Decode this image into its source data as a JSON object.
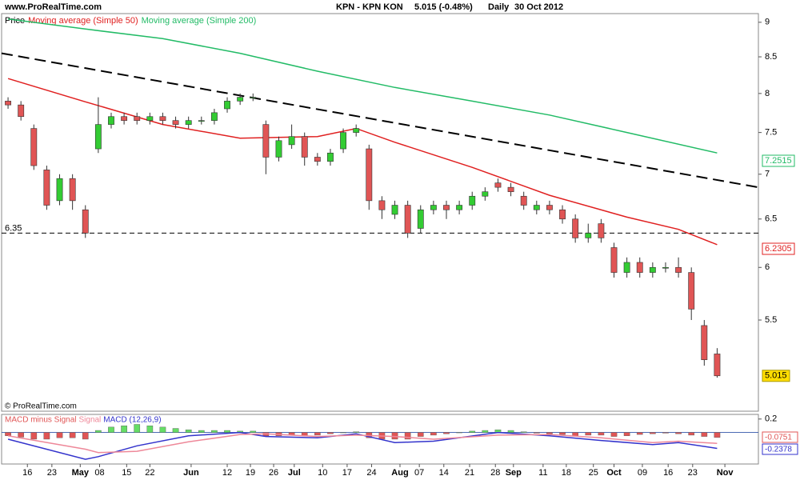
{
  "header": {
    "site": "www.ProRealTime.com",
    "instrument": "KPN - KPN KON",
    "quote": "5.015 (-0.48%)",
    "period": "Daily",
    "date": "30 Oct 2012",
    "copyright": "© ProRealTime.com"
  },
  "chart_data": [
    {
      "type": "candlestick",
      "log_scale": true,
      "legend": [
        "Price",
        "Moving average (Simple 50)",
        "Moving average (Simple 200)"
      ],
      "ylim": [
        4.73,
        9.13
      ],
      "yticks": [
        9,
        8.5,
        8,
        7.5,
        7,
        6.5,
        6,
        5.5
      ],
      "xlim": [
        -0.5,
        58.2
      ],
      "xticks": [
        {
          "value": 1.5,
          "label": "16"
        },
        {
          "value": 3.4,
          "label": "23"
        },
        {
          "value": 5.6,
          "label": "May"
        },
        {
          "value": 7.1,
          "label": "08"
        },
        {
          "value": 9.2,
          "label": "15"
        },
        {
          "value": 11.0,
          "label": "22"
        },
        {
          "value": 14.2,
          "label": "Jun"
        },
        {
          "value": 17.0,
          "label": "12"
        },
        {
          "value": 18.8,
          "label": "19"
        },
        {
          "value": 20.6,
          "label": "26"
        },
        {
          "value": 22.2,
          "label": "Jul"
        },
        {
          "value": 24.4,
          "label": "10"
        },
        {
          "value": 26.3,
          "label": "17"
        },
        {
          "value": 28.2,
          "label": "24"
        },
        {
          "value": 30.4,
          "label": "Aug"
        },
        {
          "value": 31.9,
          "label": "07"
        },
        {
          "value": 33.8,
          "label": "14"
        },
        {
          "value": 35.8,
          "label": "21"
        },
        {
          "value": 37.8,
          "label": "28"
        },
        {
          "value": 39.2,
          "label": "Sep"
        },
        {
          "value": 41.5,
          "label": "11"
        },
        {
          "value": 43.3,
          "label": "18"
        },
        {
          "value": 45.4,
          "label": "25"
        },
        {
          "value": 47.0,
          "label": "Oct"
        },
        {
          "value": 49.2,
          "label": "09"
        },
        {
          "value": 51.2,
          "label": "16"
        },
        {
          "value": 53.1,
          "label": "23"
        },
        {
          "value": 55.6,
          "label": "Nov"
        }
      ],
      "open": [
        7.9,
        7.85,
        7.55,
        7.05,
        6.7,
        6.95,
        6.6,
        7.3,
        7.6,
        7.7,
        7.7,
        7.65,
        7.7,
        7.65,
        7.6,
        7.65,
        7.65,
        7.8,
        7.9,
        7.95,
        7.6,
        7.2,
        7.35,
        7.45,
        7.2,
        7.15,
        7.3,
        7.5,
        7.3,
        6.7,
        6.55,
        6.65,
        6.4,
        6.6,
        6.65,
        6.6,
        6.65,
        6.75,
        6.9,
        6.85,
        6.75,
        6.6,
        6.65,
        6.6,
        6.5,
        6.3,
        6.45,
        6.2,
        5.95,
        6.05,
        5.95,
        6.0,
        6.0,
        5.95,
        5.45,
        5.2
      ],
      "high": [
        7.95,
        7.9,
        7.6,
        7.1,
        7.0,
        7.0,
        6.65,
        7.95,
        7.75,
        7.75,
        7.75,
        7.75,
        7.75,
        7.7,
        7.7,
        7.7,
        7.8,
        7.95,
        8.0,
        8.0,
        7.65,
        7.45,
        7.6,
        7.5,
        7.25,
        7.3,
        7.55,
        7.6,
        7.35,
        6.75,
        6.7,
        6.7,
        6.65,
        6.7,
        6.7,
        6.7,
        6.8,
        6.85,
        6.95,
        6.9,
        6.8,
        6.7,
        6.7,
        6.65,
        6.55,
        6.45,
        6.5,
        6.25,
        6.1,
        6.1,
        6.05,
        6.05,
        6.1,
        6.0,
        5.5,
        5.25
      ],
      "low": [
        7.8,
        7.65,
        7.05,
        6.6,
        6.65,
        6.6,
        6.3,
        7.25,
        7.55,
        7.6,
        7.6,
        7.6,
        7.6,
        7.55,
        7.55,
        7.6,
        7.6,
        7.75,
        7.85,
        7.9,
        7.0,
        7.15,
        7.3,
        7.1,
        7.1,
        7.1,
        7.25,
        7.45,
        6.6,
        6.5,
        6.5,
        6.3,
        6.35,
        6.55,
        6.5,
        6.55,
        6.6,
        6.7,
        6.8,
        6.75,
        6.6,
        6.55,
        6.55,
        6.45,
        6.25,
        6.25,
        6.25,
        5.9,
        5.9,
        5.9,
        5.9,
        5.95,
        5.9,
        5.5,
        5.1,
        5.0
      ],
      "close": [
        7.85,
        7.7,
        7.1,
        6.65,
        6.95,
        6.7,
        6.35,
        7.6,
        7.7,
        7.65,
        7.65,
        7.7,
        7.65,
        7.6,
        7.65,
        7.65,
        7.75,
        7.9,
        7.95,
        7.95,
        7.2,
        7.4,
        7.45,
        7.2,
        7.15,
        7.25,
        7.5,
        7.55,
        6.7,
        6.6,
        6.65,
        6.35,
        6.6,
        6.65,
        6.6,
        6.65,
        6.75,
        6.8,
        6.85,
        6.8,
        6.65,
        6.65,
        6.6,
        6.5,
        6.3,
        6.35,
        6.3,
        5.95,
        6.05,
        5.95,
        6.0,
        6.0,
        5.95,
        5.6,
        5.15,
        5.015
      ],
      "up_color": "#33cc33",
      "down_color": "#e05555",
      "series": [
        {
          "name": "Moving average (Simple 50)",
          "color": "#e02020",
          "x": [
            0,
            6,
            12,
            18,
            24,
            27,
            30,
            36,
            42,
            48,
            52,
            55
          ],
          "values": [
            8.2,
            7.89,
            7.6,
            7.43,
            7.45,
            7.55,
            7.38,
            7.08,
            6.76,
            6.52,
            6.39,
            6.23
          ],
          "last_label": "6.2305"
        },
        {
          "name": "Moving average (Simple 200)",
          "color": "#22bb66",
          "x": [
            0,
            6,
            12,
            18,
            24,
            30,
            36,
            42,
            48,
            55
          ],
          "values": [
            9.05,
            8.9,
            8.76,
            8.55,
            8.3,
            8.08,
            7.9,
            7.72,
            7.5,
            7.25
          ],
          "last_label": "7.2515"
        }
      ],
      "trendline": {
        "x": [
          -0.5,
          58.2
        ],
        "values": [
          8.55,
          6.85
        ]
      },
      "hline": {
        "value": 6.35,
        "label": "6.35"
      },
      "last_price_label": "5.015"
    },
    {
      "type": "macd",
      "legend": [
        "MACD minus Signal",
        "Signal",
        "MACD (12,26,9)"
      ],
      "ylim": [
        -0.47,
        0.269
      ],
      "yticks": [
        0.2
      ],
      "histogram": [
        -0.05,
        -0.07,
        -0.1,
        -0.1,
        -0.08,
        -0.08,
        -0.1,
        0.03,
        0.08,
        0.1,
        0.12,
        0.1,
        0.08,
        0.06,
        0.04,
        0.03,
        0.03,
        0.03,
        0.02,
        0.02,
        -0.05,
        -0.05,
        -0.04,
        -0.05,
        -0.04,
        -0.02,
        0.0,
        0.01,
        -0.08,
        -0.1,
        -0.1,
        -0.1,
        -0.06,
        -0.04,
        -0.02,
        0.0,
        0.02,
        0.03,
        0.04,
        0.03,
        0.01,
        -0.01,
        -0.02,
        -0.03,
        -0.05,
        -0.04,
        -0.04,
        -0.06,
        -0.05,
        -0.03,
        -0.02,
        -0.01,
        -0.02,
        -0.04,
        -0.06,
        -0.0751
      ],
      "hist_label": "-0.0751",
      "series": [
        {
          "name": "MACD",
          "color": "#3333cc",
          "x": [
            0,
            6,
            7,
            10,
            14,
            18,
            20,
            24,
            27,
            30,
            33,
            38,
            42,
            46,
            50,
            52,
            55
          ],
          "values": [
            -0.1,
            -0.4,
            -0.36,
            -0.2,
            -0.05,
            0.0,
            -0.06,
            -0.08,
            -0.02,
            -0.15,
            -0.13,
            0.0,
            -0.05,
            -0.12,
            -0.18,
            -0.15,
            -0.2378
          ],
          "last_label": "-0.2378"
        },
        {
          "name": "Signal",
          "color": "#ee8899",
          "x": [
            0,
            6,
            7,
            10,
            14,
            18,
            20,
            24,
            27,
            30,
            33,
            38,
            42,
            46,
            50,
            52,
            55
          ],
          "values": [
            -0.05,
            -0.25,
            -0.3,
            -0.28,
            -0.14,
            -0.03,
            -0.02,
            -0.06,
            -0.04,
            -0.06,
            -0.1,
            -0.04,
            -0.03,
            -0.08,
            -0.15,
            -0.13,
            -0.1627
          ]
        }
      ]
    }
  ]
}
